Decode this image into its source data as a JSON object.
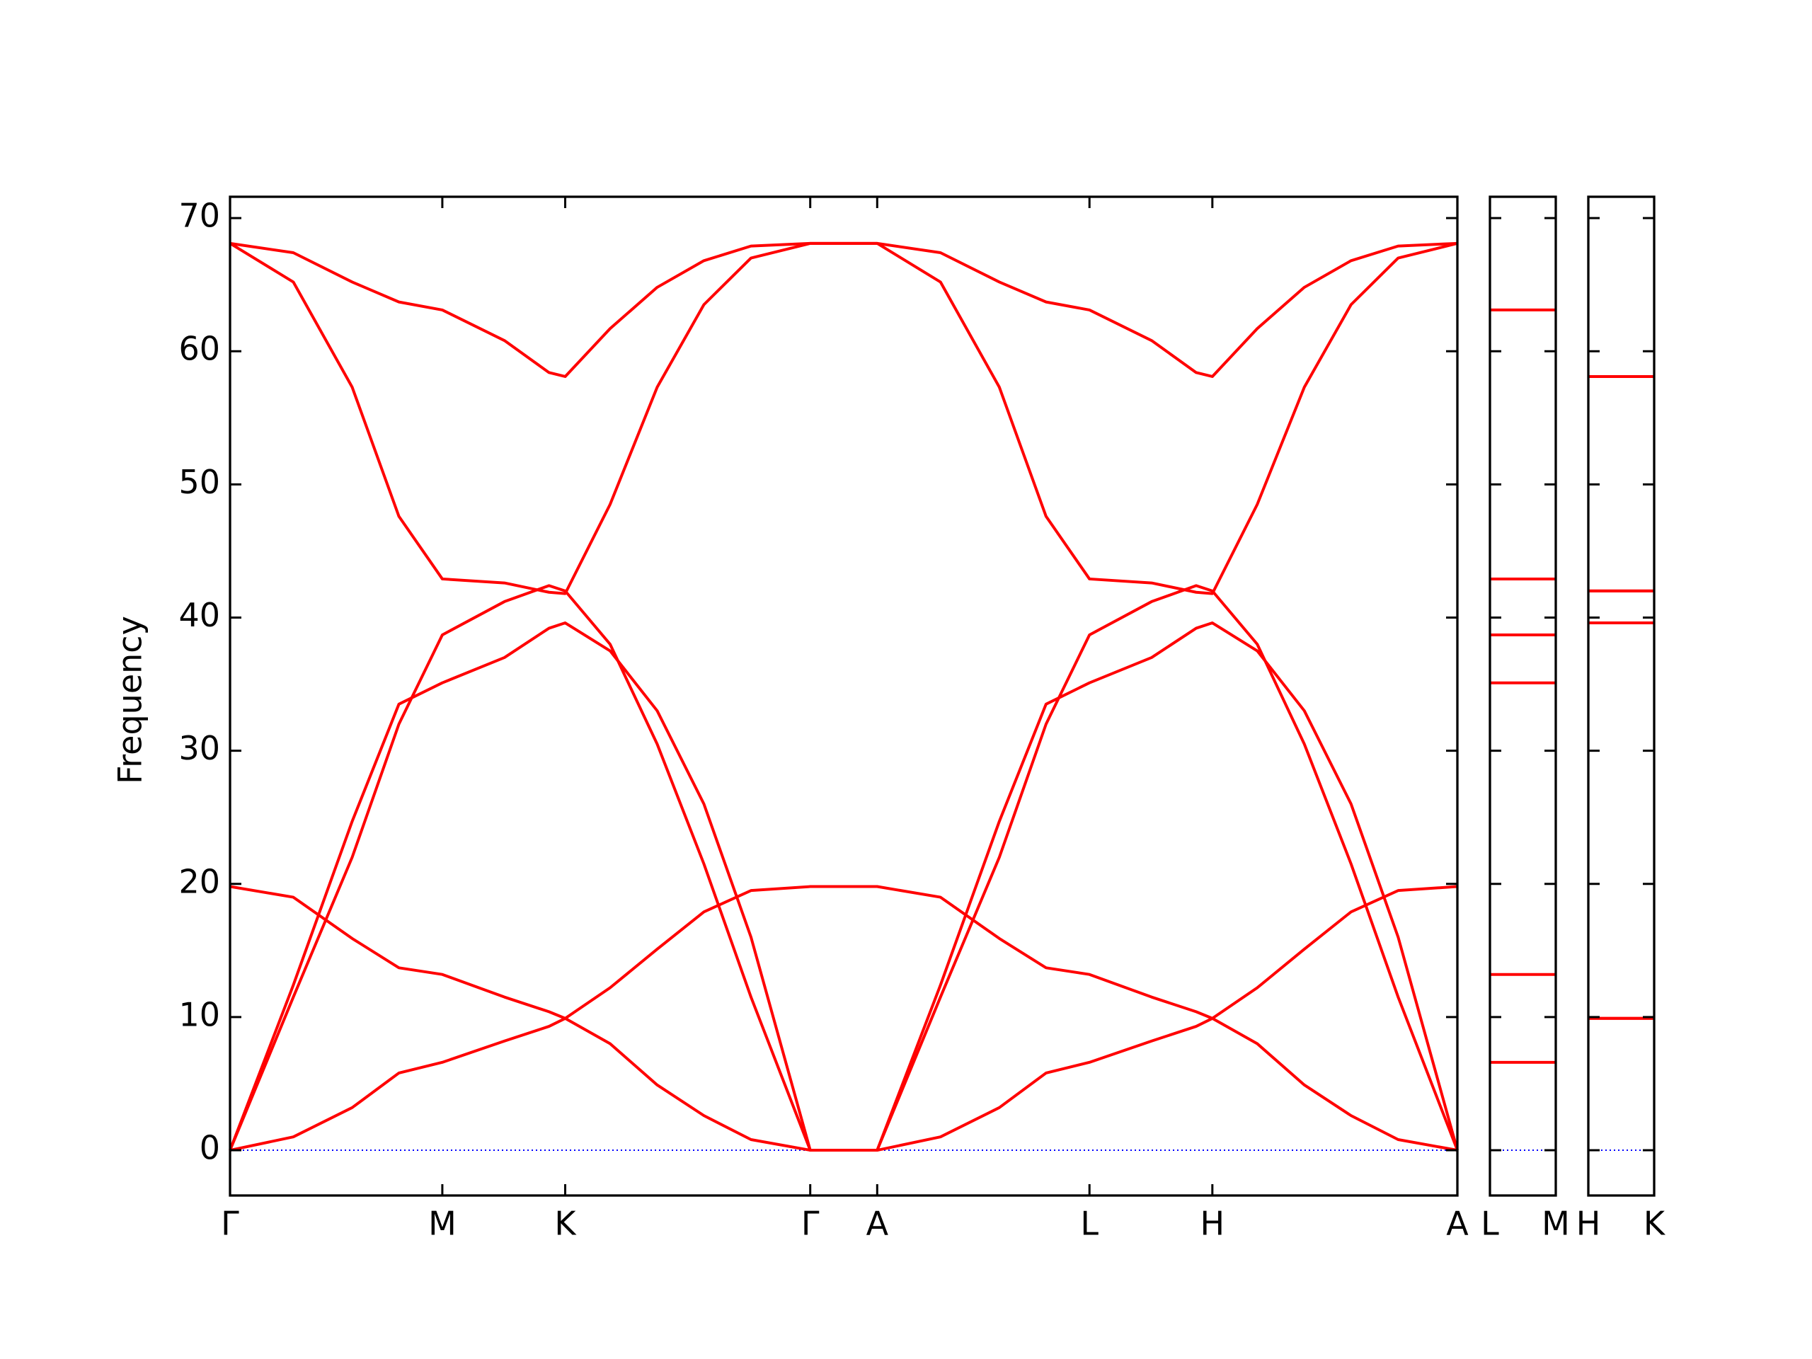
{
  "chart_data": [
    {
      "type": "line",
      "ylabel": "Frequency",
      "color": "#ff0000",
      "x": [
        0,
        0.172,
        0.332,
        0.459,
        0.577,
        0.746,
        0.867,
        0.911,
        1.033,
        1.161,
        1.288,
        1.416,
        1.577,
        1.759,
        1.931,
        2.091,
        2.218,
        2.336,
        2.505,
        2.626,
        2.67,
        2.792,
        2.92,
        3.047,
        3.175,
        3.336
      ],
      "xlim": [
        0,
        3.336
      ],
      "xticks": [
        {
          "value": 0,
          "label": "Γ"
        },
        {
          "value": 0.577,
          "label": "M"
        },
        {
          "value": 0.911,
          "label": "K"
        },
        {
          "value": 1.577,
          "label": "Γ"
        },
        {
          "value": 1.759,
          "label": "A"
        },
        {
          "value": 2.336,
          "label": "L"
        },
        {
          "value": 2.67,
          "label": "H"
        },
        {
          "value": 3.336,
          "label": "A"
        }
      ],
      "ylim": [
        -3.4,
        71.6
      ],
      "yticks": [
        0,
        10,
        20,
        30,
        40,
        50,
        60,
        70
      ],
      "hlines": [
        {
          "value": 0,
          "color": "#0000ff"
        }
      ],
      "series": [
        {
          "values": [
            0,
            1.0,
            3.2,
            5.8,
            6.6,
            8.2,
            9.3,
            9.9,
            12.2,
            15.1,
            17.9,
            19.5,
            19.8,
            19.8,
            19.0,
            15.9,
            13.7,
            13.2,
            11.5,
            10.4,
            9.9,
            8.0,
            4.9,
            2.6,
            0.8,
            0
          ]
        },
        {
          "values": [
            19.8,
            19.0,
            15.9,
            13.7,
            13.2,
            11.5,
            10.4,
            9.9,
            8.0,
            4.9,
            2.6,
            0.8,
            0,
            0,
            1.0,
            3.2,
            5.8,
            6.6,
            8.2,
            9.3,
            9.9,
            12.2,
            15.1,
            17.9,
            19.5,
            19.8
          ]
        },
        {
          "values": [
            0,
            12.4,
            24.7,
            33.5,
            35.1,
            37.0,
            39.2,
            39.6,
            37.5,
            33.0,
            26.0,
            16.0,
            0,
            0,
            12.4,
            24.7,
            33.5,
            35.1,
            37.0,
            39.2,
            39.6,
            37.5,
            33.0,
            26.0,
            16.0,
            0
          ]
        },
        {
          "values": [
            0,
            11.5,
            22.0,
            32.0,
            38.7,
            41.2,
            42.4,
            42.0,
            38.0,
            30.5,
            21.5,
            11.5,
            0,
            0,
            11.5,
            22.0,
            32.0,
            38.7,
            41.2,
            42.4,
            42.0,
            38.0,
            30.5,
            21.5,
            11.5,
            0
          ]
        },
        {
          "values": [
            68.1,
            65.2,
            57.3,
            47.6,
            42.9,
            42.6,
            41.9,
            41.8,
            48.5,
            57.3,
            63.5,
            67.0,
            68.1,
            68.1,
            65.2,
            57.3,
            47.6,
            42.9,
            42.6,
            41.9,
            41.8,
            48.5,
            57.3,
            63.5,
            67.0,
            68.1
          ]
        },
        {
          "values": [
            68.1,
            67.4,
            65.2,
            63.7,
            63.1,
            60.8,
            58.4,
            58.1,
            61.7,
            64.8,
            66.8,
            67.9,
            68.1,
            68.1,
            67.4,
            65.2,
            63.7,
            63.1,
            60.8,
            58.4,
            58.1,
            61.7,
            64.8,
            66.8,
            67.9,
            68.1
          ]
        }
      ]
    },
    {
      "type": "line",
      "color": "#ff0000",
      "sharey": true,
      "x": [
        0,
        0.182
      ],
      "xlim": [
        0,
        0.182
      ],
      "xticks": [
        {
          "value": 0,
          "label": "L"
        },
        {
          "value": 0.182,
          "label": "M"
        }
      ],
      "hlines": [
        {
          "value": 0,
          "color": "#0000ff"
        }
      ],
      "series": [
        {
          "values": [
            6.6,
            6.6
          ]
        },
        {
          "values": [
            13.2,
            13.2
          ]
        },
        {
          "values": [
            35.1,
            35.1
          ]
        },
        {
          "values": [
            38.7,
            38.7
          ]
        },
        {
          "values": [
            42.9,
            42.9
          ]
        },
        {
          "values": [
            63.1,
            63.1
          ]
        }
      ]
    },
    {
      "type": "line",
      "color": "#ff0000",
      "sharey": true,
      "x": [
        0,
        0.182
      ],
      "xlim": [
        0,
        0.182
      ],
      "xticks": [
        {
          "value": 0,
          "label": "H"
        },
        {
          "value": 0.182,
          "label": "K"
        }
      ],
      "hlines": [
        {
          "value": 0,
          "color": "#0000ff"
        }
      ],
      "series": [
        {
          "values": [
            9.9,
            9.9
          ]
        },
        {
          "values": [
            9.9,
            9.9
          ]
        },
        {
          "values": [
            39.6,
            39.6
          ]
        },
        {
          "values": [
            42.0,
            42.0
          ]
        },
        {
          "values": [
            42.0,
            42.0
          ]
        },
        {
          "values": [
            58.1,
            58.1
          ]
        }
      ]
    }
  ]
}
